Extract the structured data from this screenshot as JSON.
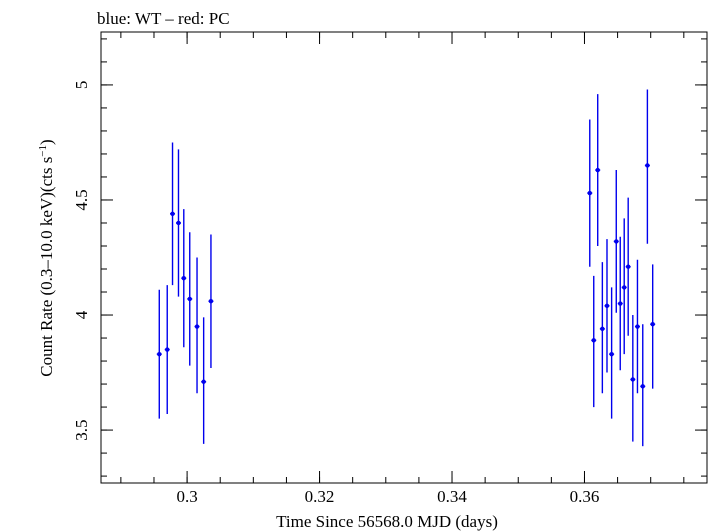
{
  "chart_data": {
    "type": "scatter",
    "title": "blue: WT – red: PC",
    "xlabel": "Time Since 56568.0 MJD (days)",
    "ylabel": {
      "main": "Count Rate (0.3–10.0 keV)(cts s",
      "sup": "−1",
      "close": ")"
    },
    "xlim": [
      0.287,
      0.3785
    ],
    "ylim": [
      3.27,
      5.23
    ],
    "x_ticks": [
      0.3,
      0.32,
      0.34,
      0.36
    ],
    "x_tick_labels": [
      "0.3",
      "0.32",
      "0.34",
      "0.36"
    ],
    "y_ticks": [
      3.5,
      4,
      4.5,
      5
    ],
    "y_tick_labels": [
      "3.5",
      "4",
      "4.5",
      "5"
    ],
    "grid": false,
    "series": [
      {
        "name": "WT",
        "color": "#0000ee",
        "points": [
          {
            "x": 0.2958,
            "y": 3.83,
            "ylo": 3.55,
            "yhi": 4.11
          },
          {
            "x": 0.297,
            "y": 3.85,
            "ylo": 3.57,
            "yhi": 4.13
          },
          {
            "x": 0.2978,
            "y": 4.44,
            "ylo": 4.13,
            "yhi": 4.75
          },
          {
            "x": 0.2987,
            "y": 4.4,
            "ylo": 4.08,
            "yhi": 4.72
          },
          {
            "x": 0.2995,
            "y": 4.16,
            "ylo": 3.86,
            "yhi": 4.46
          },
          {
            "x": 0.3004,
            "y": 4.07,
            "ylo": 3.78,
            "yhi": 4.36
          },
          {
            "x": 0.3015,
            "y": 3.95,
            "ylo": 3.66,
            "yhi": 4.25
          },
          {
            "x": 0.3025,
            "y": 3.71,
            "ylo": 3.44,
            "yhi": 3.99
          },
          {
            "x": 0.3036,
            "y": 4.06,
            "ylo": 3.77,
            "yhi": 4.35
          },
          {
            "x": 0.3608,
            "y": 4.53,
            "ylo": 4.21,
            "yhi": 4.85
          },
          {
            "x": 0.3614,
            "y": 3.89,
            "ylo": 3.6,
            "yhi": 4.17
          },
          {
            "x": 0.362,
            "y": 4.63,
            "ylo": 4.3,
            "yhi": 4.96
          },
          {
            "x": 0.3627,
            "y": 3.94,
            "ylo": 3.66,
            "yhi": 4.23
          },
          {
            "x": 0.3634,
            "y": 4.04,
            "ylo": 3.75,
            "yhi": 4.33
          },
          {
            "x": 0.3641,
            "y": 3.83,
            "ylo": 3.55,
            "yhi": 4.12
          },
          {
            "x": 0.3648,
            "y": 4.32,
            "ylo": 4.01,
            "yhi": 4.63
          },
          {
            "x": 0.3654,
            "y": 4.05,
            "ylo": 3.76,
            "yhi": 4.34
          },
          {
            "x": 0.366,
            "y": 4.12,
            "ylo": 3.83,
            "yhi": 4.42
          },
          {
            "x": 0.3666,
            "y": 4.21,
            "ylo": 3.91,
            "yhi": 4.51
          },
          {
            "x": 0.3673,
            "y": 3.72,
            "ylo": 3.45,
            "yhi": 4.0
          },
          {
            "x": 0.368,
            "y": 3.95,
            "ylo": 3.66,
            "yhi": 4.24
          },
          {
            "x": 0.3688,
            "y": 3.69,
            "ylo": 3.43,
            "yhi": 3.96
          },
          {
            "x": 0.3695,
            "y": 4.65,
            "ylo": 4.31,
            "yhi": 4.98
          },
          {
            "x": 0.3703,
            "y": 3.96,
            "ylo": 3.68,
            "yhi": 4.22
          }
        ]
      }
    ]
  }
}
